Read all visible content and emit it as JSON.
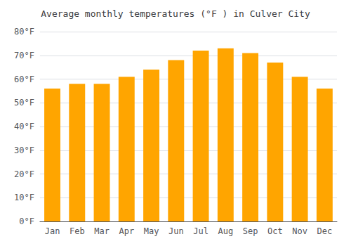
{
  "chart_data": {
    "type": "bar",
    "title": "Average monthly temperatures (°F ) in Culver City",
    "categories": [
      "Jan",
      "Feb",
      "Mar",
      "Apr",
      "May",
      "Jun",
      "Jul",
      "Aug",
      "Sep",
      "Oct",
      "Nov",
      "Dec"
    ],
    "values": [
      56,
      58,
      58,
      61,
      64,
      68,
      72,
      73,
      71,
      67,
      61,
      56
    ],
    "color": "#FFA500",
    "ylim": [
      0,
      80
    ],
    "yticks": [
      {
        "value": 0,
        "label": "0°F"
      },
      {
        "value": 10,
        "label": "10°F"
      },
      {
        "value": 20,
        "label": "20°F"
      },
      {
        "value": 30,
        "label": "30°F"
      },
      {
        "value": 40,
        "label": "40°F"
      },
      {
        "value": 50,
        "label": "50°F"
      },
      {
        "value": 60,
        "label": "60°F"
      },
      {
        "value": 70,
        "label": "70°F"
      },
      {
        "value": 80,
        "label": "80°F"
      }
    ],
    "grid": true
  }
}
